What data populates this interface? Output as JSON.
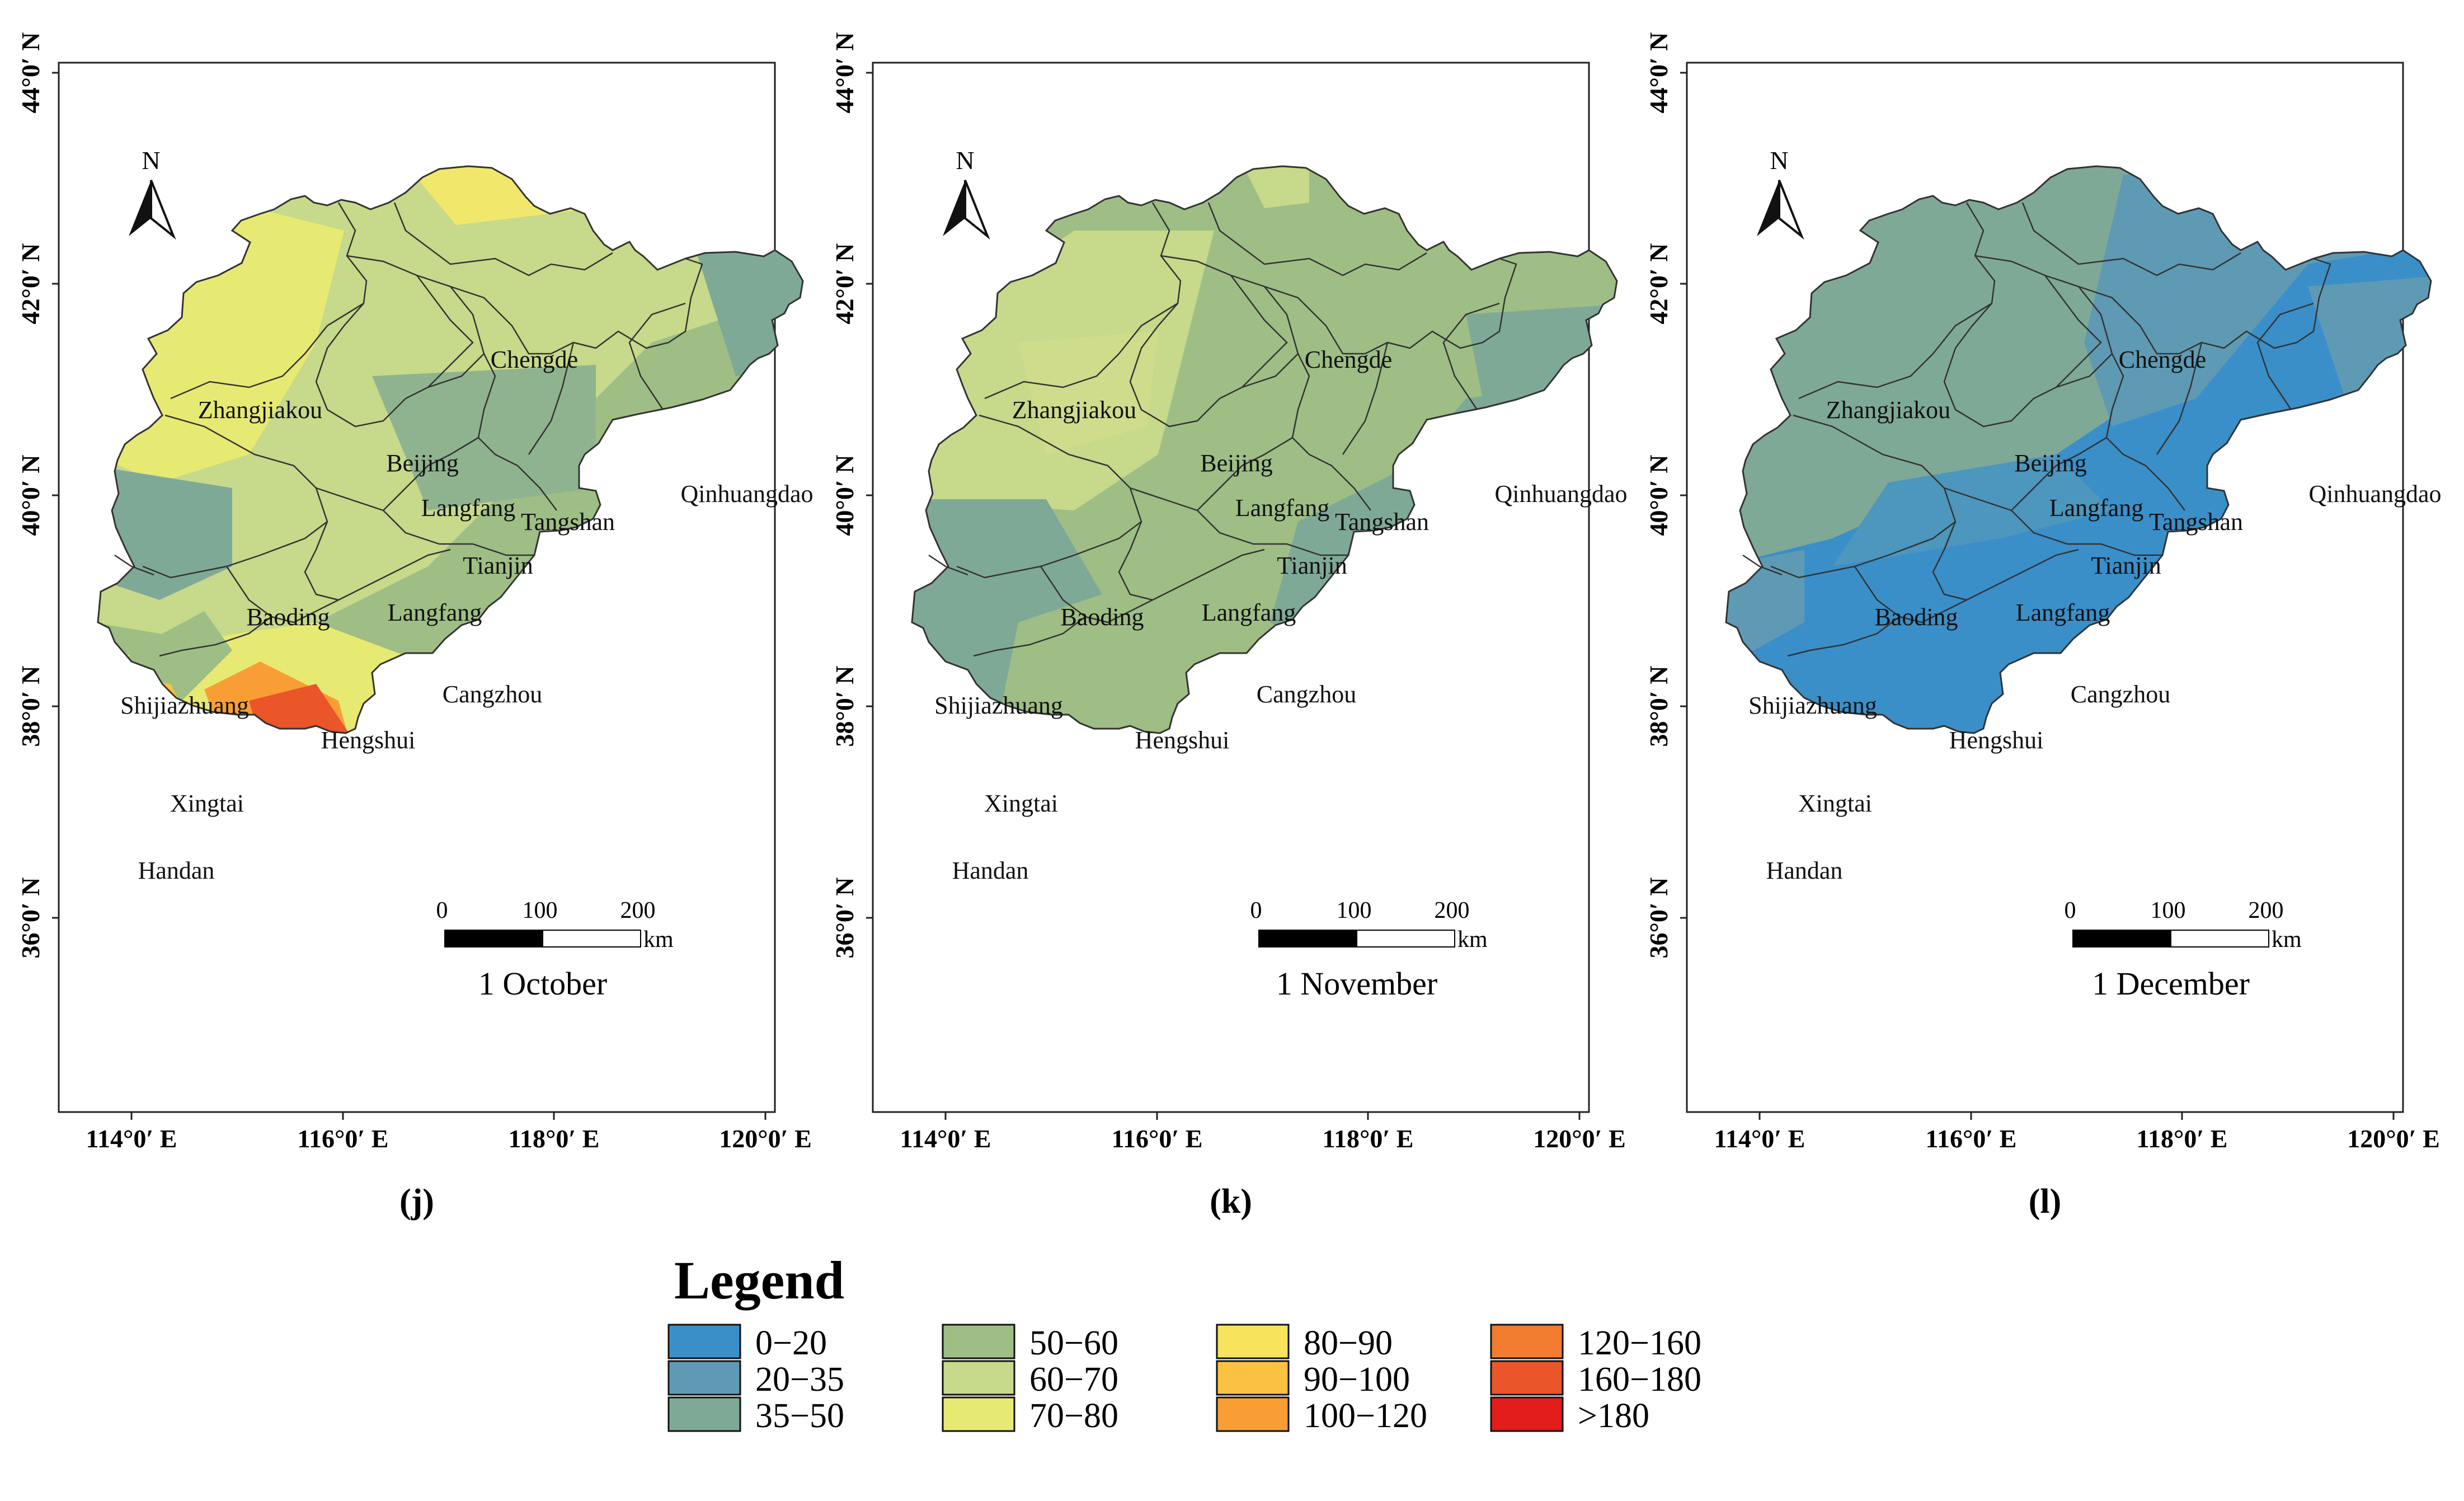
{
  "figure": {
    "panels": [
      {
        "tag": "(j)",
        "date": "1 October"
      },
      {
        "tag": "(k)",
        "date": "1 November"
      },
      {
        "tag": "(l)",
        "date": "1 December"
      }
    ],
    "lat_ticks": [
      "44°0′ N",
      "42°0′ N",
      "40°0′ N",
      "38°0′ N",
      "36°0′ N"
    ],
    "lon_ticks": [
      "114°0′ E",
      "116°0′ E",
      "118°0′ E",
      "120°0′ E"
    ],
    "north_label": "N",
    "scale_bar": {
      "ticks": [
        "0",
        "100",
        "200"
      ],
      "unit": "km"
    },
    "cities": [
      "Chengde",
      "Zhangjiakou",
      "Beijing",
      "Langfang",
      "Tangshan",
      "Qinhuangdao",
      "Tianjin",
      "Baoding",
      "Langfang",
      "Shijiazhuang",
      "Cangzhou",
      "Hengshui",
      "Xingtai",
      "Handan"
    ]
  },
  "legend": {
    "title": "Legend",
    "items": [
      {
        "label": "0−20",
        "color": "#3a8fc9"
      },
      {
        "label": "20−35",
        "color": "#5f9ab4"
      },
      {
        "label": "35−50",
        "color": "#7fa997"
      },
      {
        "label": "50−60",
        "color": "#9ebe85"
      },
      {
        "label": "60−70",
        "color": "#c7d98a"
      },
      {
        "label": "70−80",
        "color": "#e7ea72"
      },
      {
        "label": "80−90",
        "color": "#f7e35c"
      },
      {
        "label": "90−100",
        "color": "#fbc142"
      },
      {
        "label": "100−120",
        "color": "#f89e34"
      },
      {
        "label": "120−160",
        "color": "#f27c30"
      },
      {
        "label": "160−180",
        "color": "#ea5529"
      },
      {
        "label": ">180",
        "color": "#e21b1b"
      }
    ]
  }
}
